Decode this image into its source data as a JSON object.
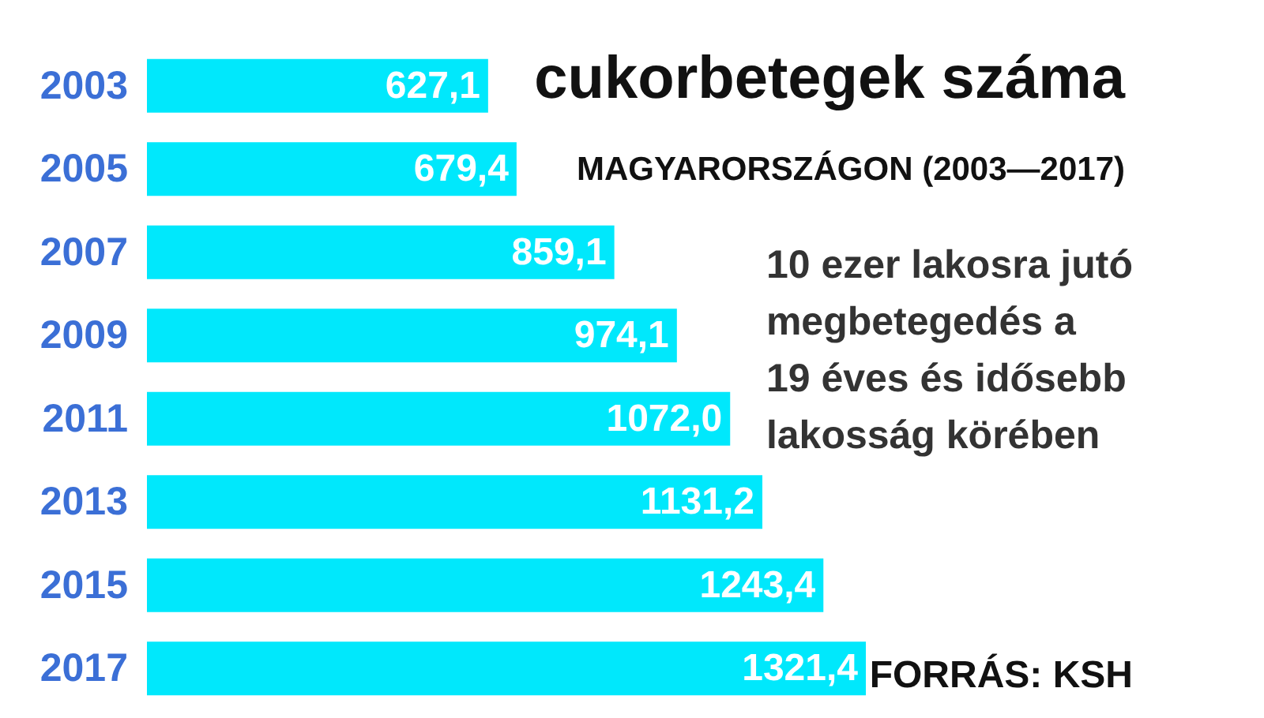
{
  "chart_data": {
    "type": "bar",
    "orientation": "horizontal",
    "title": "cukorbetegek száma",
    "subtitle": "MAGYARORSZÁGON (2003—2017)",
    "categories": [
      "2003",
      "2005",
      "2007",
      "2009",
      "2011",
      "2013",
      "2015",
      "2017"
    ],
    "values": [
      627.1,
      679.4,
      859.1,
      974.1,
      1072.0,
      1131.2,
      1243.4,
      1321.4
    ],
    "value_labels": [
      "627,1",
      "679,4",
      "859,1",
      "974,1",
      "1072,0",
      "1131,2",
      "1243,4",
      "1321,4"
    ],
    "color": "#00e8fc",
    "annotations": [
      "10 ezer lakosra jutó\nmegbetegedés a\n19 éves és idősebb\nlakosság körében",
      "FORRÁS: KSH"
    ],
    "tick_labels": "y"
  }
}
